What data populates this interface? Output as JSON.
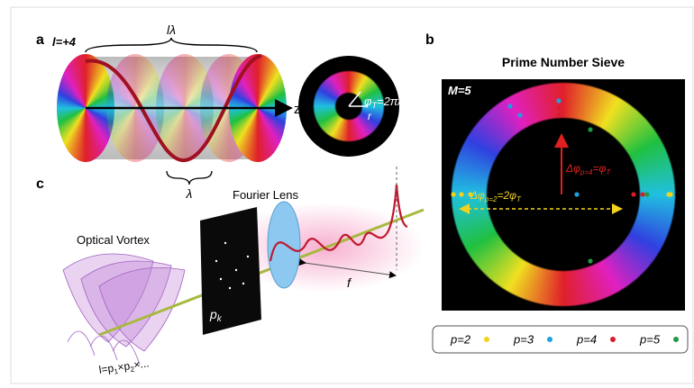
{
  "panels": {
    "a": "a",
    "b": "b",
    "c": "c"
  },
  "panel_a": {
    "charge_label": "l=+4",
    "length_label": "lλ",
    "axis_label": "z",
    "wavelength_label": "λ",
    "phase_label": {
      "symbol": "φ",
      "sub": "T",
      "rest": "=2π/l"
    },
    "radius_label": "r"
  },
  "panel_b": {
    "title": "Prime Number Sieve",
    "mode_label": "M=5",
    "delta_p4": {
      "symbol": "Δφ",
      "sub": "p=4",
      "eq": "=φ",
      "eq_sub": "T"
    },
    "delta_p2": {
      "symbol": "Δφ",
      "sub": "p=2",
      "eq": "=2φ",
      "eq_sub": "T"
    },
    "legend": [
      {
        "label": "p=2",
        "color": "#f2d21b"
      },
      {
        "label": "p=3",
        "color": "#1ea0e0"
      },
      {
        "label": "p=4",
        "color": "#d81c2a"
      },
      {
        "label": "p=5",
        "color": "#1f9a45"
      }
    ]
  },
  "panel_c": {
    "vortex_label": "Optical Vortex",
    "lens_label": "Fourier Lens",
    "mask_label": {
      "symbol": "p",
      "sub": "k"
    },
    "focal_label": "f",
    "product_label": {
      "a": "l=p",
      "s1": "1",
      "b": "×p",
      "s2": "2",
      "c": "×..."
    }
  }
}
